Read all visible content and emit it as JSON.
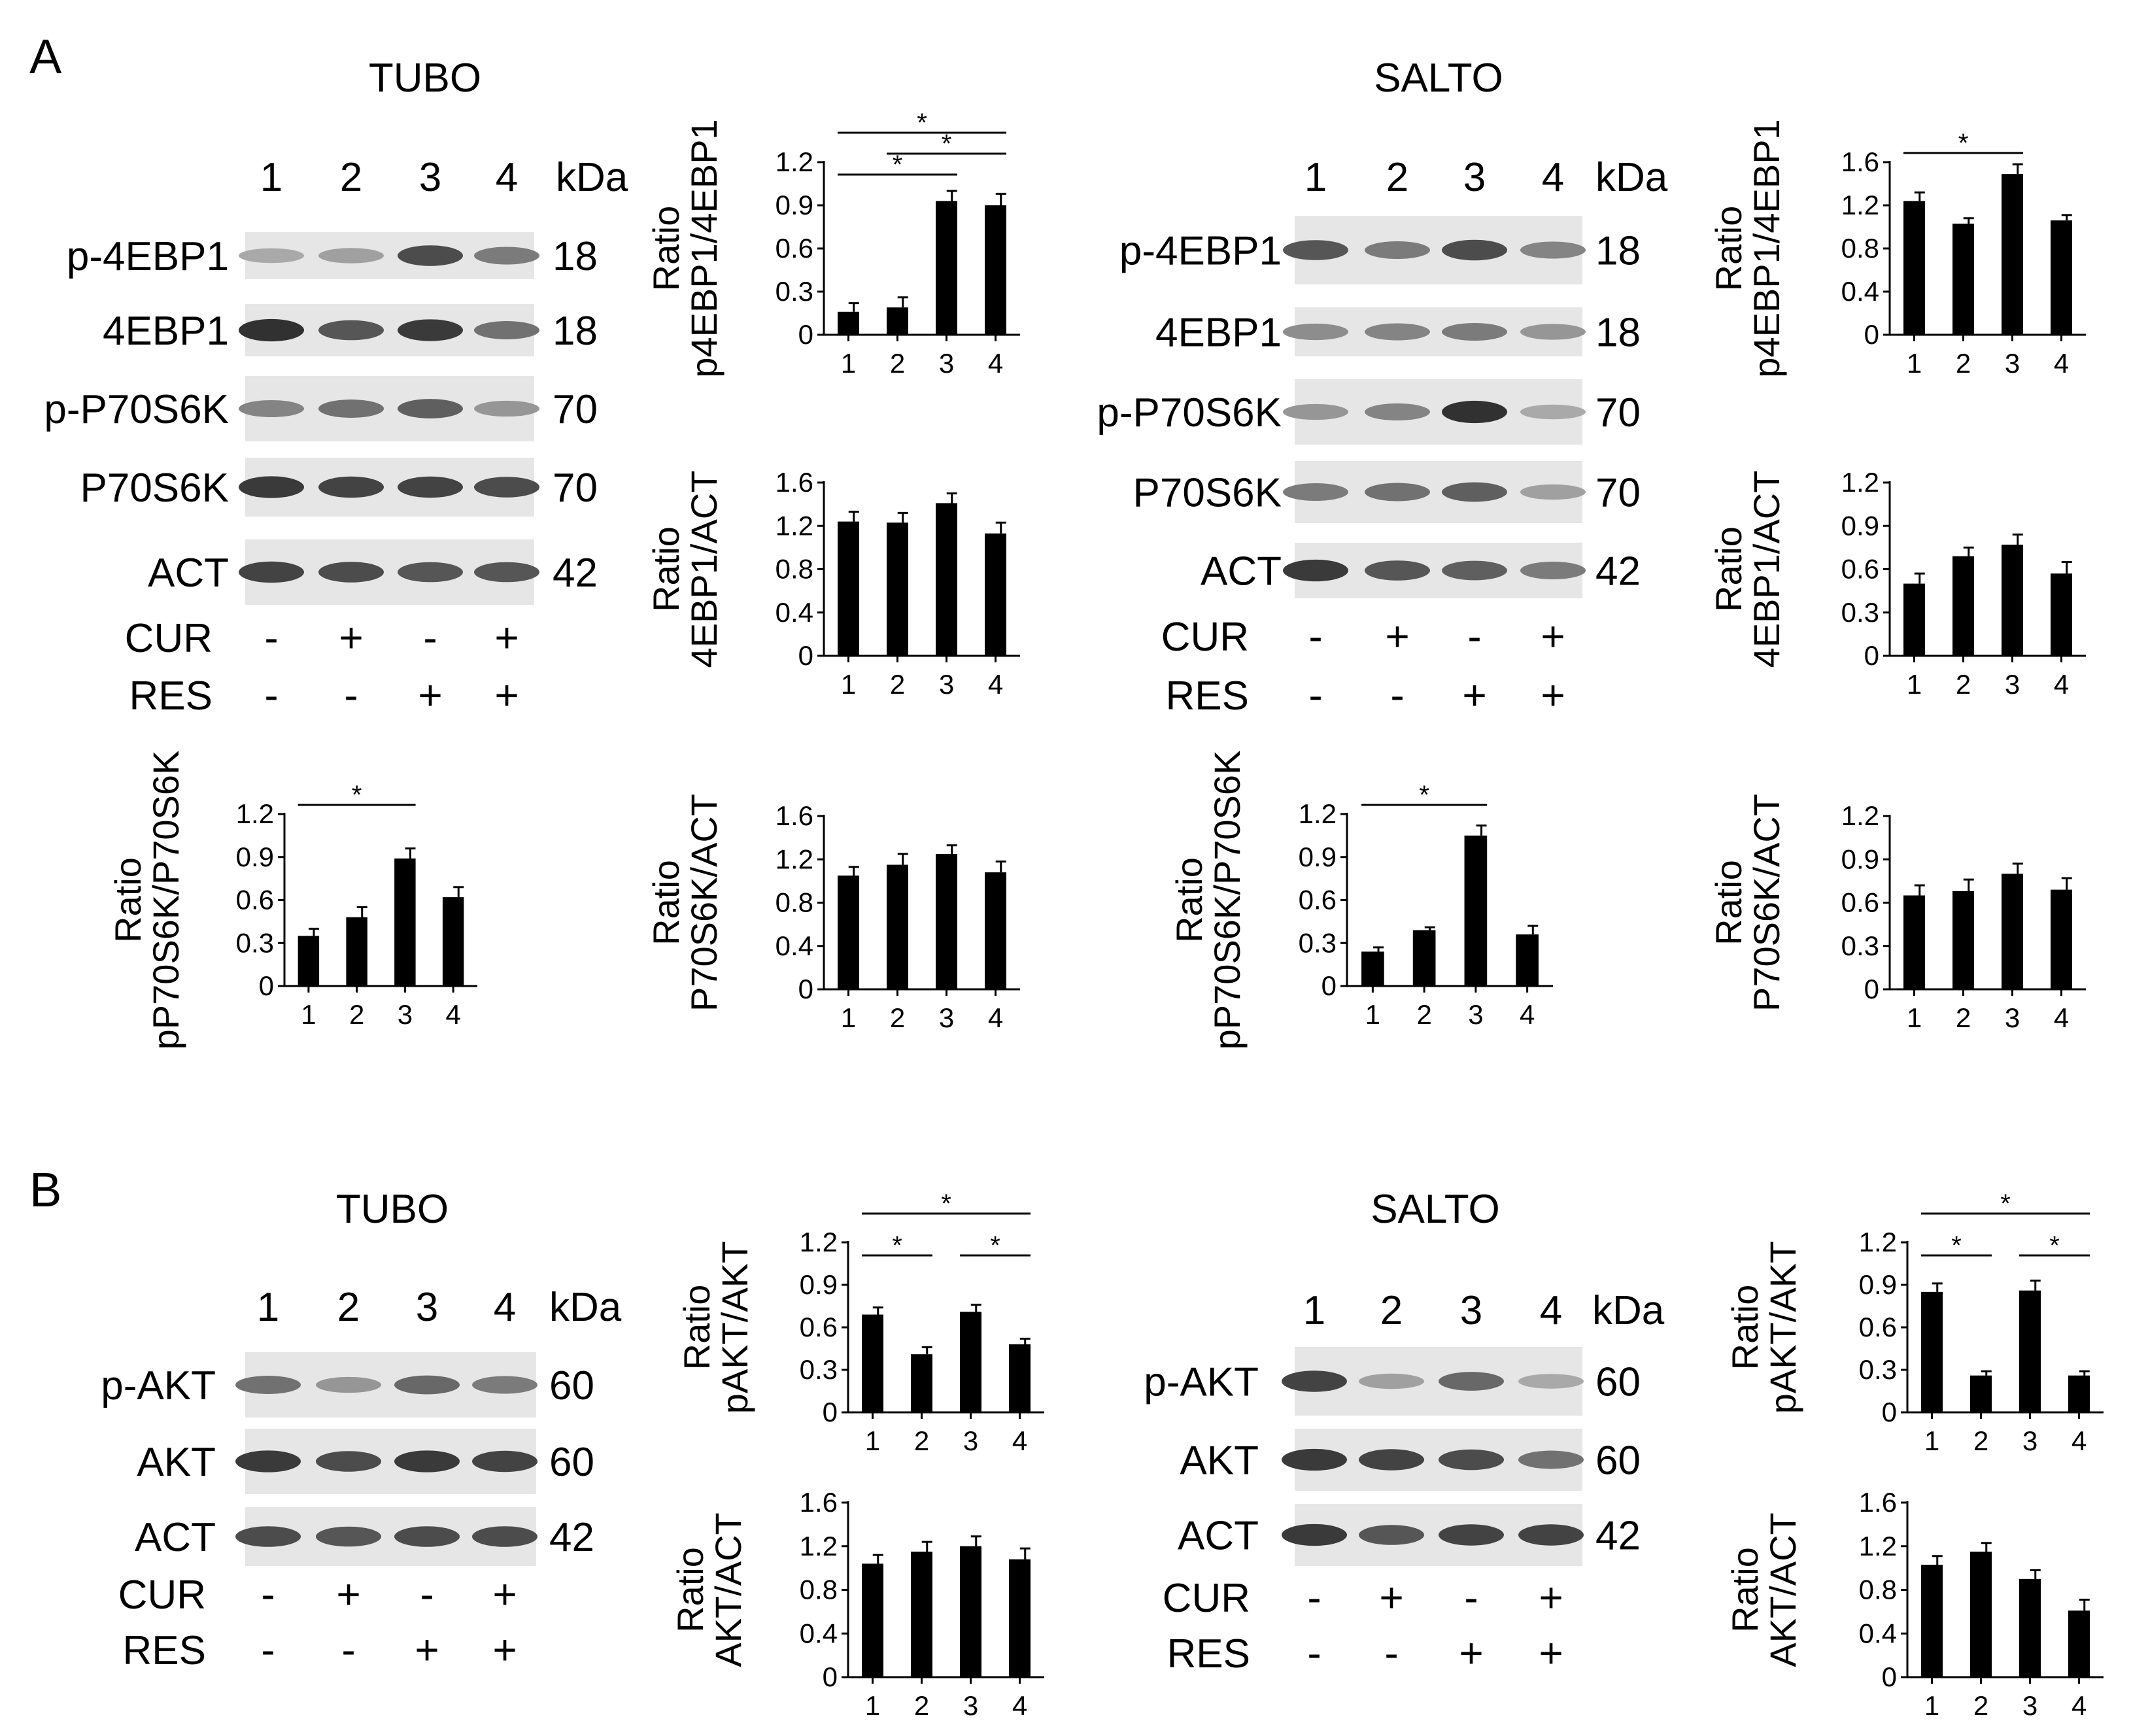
{
  "panels": [
    {
      "letter": "A",
      "cell_lines": [
        "TUBO",
        "SALTO"
      ]
    },
    {
      "letter": "B",
      "cell_lines": [
        "TUBO",
        "SALTO"
      ]
    }
  ],
  "blots": [
    {
      "id": "A-TUBO",
      "title": "TUBO",
      "kda_label": "kDa",
      "lanes": [
        "1",
        "2",
        "3",
        "4"
      ],
      "bands": [
        {
          "label": "p-4EBP1",
          "kda": "18",
          "intensity": [
            0.25,
            0.3,
            0.75,
            0.5
          ]
        },
        {
          "label": "4EBP1",
          "kda": "18",
          "intensity": [
            0.9,
            0.7,
            0.85,
            0.55
          ]
        },
        {
          "label": "p-P70S6K",
          "kda": "70",
          "intensity": [
            0.45,
            0.55,
            0.65,
            0.35
          ]
        },
        {
          "label": "P70S6K",
          "kda": "70",
          "intensity": [
            0.85,
            0.8,
            0.8,
            0.75
          ]
        },
        {
          "label": "ACT",
          "kda": "42",
          "intensity": [
            0.8,
            0.75,
            0.7,
            0.7
          ]
        }
      ],
      "treatments": [
        {
          "label": "CUR",
          "signs": [
            "-",
            "+",
            "-",
            "+"
          ]
        },
        {
          "label": "RES",
          "signs": [
            "-",
            "-",
            "+",
            "+"
          ]
        }
      ]
    },
    {
      "id": "A-SALTO",
      "title": "SALTO",
      "kda_label": "kDa",
      "lanes": [
        "1",
        "2",
        "3",
        "4"
      ],
      "bands": [
        {
          "label": "p-4EBP1",
          "kda": "18",
          "intensity": [
            0.7,
            0.5,
            0.75,
            0.45
          ]
        },
        {
          "label": "4EBP1",
          "kda": "18",
          "intensity": [
            0.4,
            0.45,
            0.5,
            0.35
          ]
        },
        {
          "label": "p-P70S6K",
          "kda": "70",
          "intensity": [
            0.35,
            0.45,
            0.9,
            0.25
          ]
        },
        {
          "label": "P70S6K",
          "kda": "70",
          "intensity": [
            0.5,
            0.55,
            0.65,
            0.3
          ]
        },
        {
          "label": "ACT",
          "kda": "42",
          "intensity": [
            0.85,
            0.7,
            0.65,
            0.5
          ]
        }
      ],
      "treatments": [
        {
          "label": "CUR",
          "signs": [
            "-",
            "+",
            "-",
            "+"
          ]
        },
        {
          "label": "RES",
          "signs": [
            "-",
            "-",
            "+",
            "+"
          ]
        }
      ]
    },
    {
      "id": "B-TUBO",
      "title": "TUBO",
      "kda_label": "kDa",
      "lanes": [
        "1",
        "2",
        "3",
        "4"
      ],
      "bands": [
        {
          "label": "p-AKT",
          "kda": "60",
          "intensity": [
            0.55,
            0.35,
            0.6,
            0.5
          ]
        },
        {
          "label": "AKT",
          "kda": "60",
          "intensity": [
            0.85,
            0.75,
            0.85,
            0.8
          ]
        },
        {
          "label": "ACT",
          "kda": "42",
          "intensity": [
            0.75,
            0.7,
            0.75,
            0.75
          ]
        }
      ],
      "treatments": [
        {
          "label": "CUR",
          "signs": [
            "-",
            "+",
            "-",
            "+"
          ]
        },
        {
          "label": "RES",
          "signs": [
            "-",
            "-",
            "+",
            "+"
          ]
        }
      ]
    },
    {
      "id": "B-SALTO",
      "title": "SALTO",
      "kda_label": "kDa",
      "lanes": [
        "1",
        "2",
        "3",
        "4"
      ],
      "bands": [
        {
          "label": "p-AKT",
          "kda": "60",
          "intensity": [
            0.8,
            0.3,
            0.6,
            0.25
          ]
        },
        {
          "label": "AKT",
          "kda": "60",
          "intensity": [
            0.85,
            0.8,
            0.75,
            0.55
          ]
        },
        {
          "label": "ACT",
          "kda": "42",
          "intensity": [
            0.85,
            0.7,
            0.8,
            0.8
          ]
        }
      ],
      "treatments": [
        {
          "label": "CUR",
          "signs": [
            "-",
            "+",
            "-",
            "+"
          ]
        },
        {
          "label": "RES",
          "signs": [
            "-",
            "-",
            "+",
            "+"
          ]
        }
      ]
    }
  ],
  "chart_data": [
    {
      "id": "A-TUBO-p4EBP1",
      "type": "bar",
      "categories": [
        "1",
        "2",
        "3",
        "4"
      ],
      "values": [
        0.16,
        0.19,
        0.93,
        0.9
      ],
      "errors": [
        0.06,
        0.07,
        0.07,
        0.08
      ],
      "ylabel": [
        "Ratio",
        "p4EBP1/4EBP1"
      ],
      "ylim": [
        0,
        1.2
      ],
      "yticks": [
        "0",
        "0.3",
        "0.6",
        "0.9",
        "1.2"
      ],
      "significance": [
        {
          "from": 1,
          "to": 3,
          "label": "*"
        },
        {
          "from": 2,
          "to": 4,
          "label": "*"
        },
        {
          "from": 1,
          "to": 4,
          "label": "*"
        }
      ]
    },
    {
      "id": "A-TUBO-4EBP1",
      "type": "bar",
      "categories": [
        "1",
        "2",
        "3",
        "4"
      ],
      "values": [
        1.24,
        1.23,
        1.41,
        1.13
      ],
      "errors": [
        0.09,
        0.09,
        0.09,
        0.1
      ],
      "ylabel": [
        "Ratio",
        "4EBP1/ACT"
      ],
      "ylim": [
        0,
        1.6
      ],
      "yticks": [
        "0",
        "0.4",
        "0.8",
        "1.2",
        "1.6"
      ],
      "significance": []
    },
    {
      "id": "A-TUBO-pP70S6K",
      "type": "bar",
      "categories": [
        "1",
        "2",
        "3",
        "4"
      ],
      "values": [
        0.35,
        0.48,
        0.89,
        0.62
      ],
      "errors": [
        0.05,
        0.07,
        0.07,
        0.07
      ],
      "ylabel": [
        "Ratio",
        "pP70S6K/P70S6K"
      ],
      "ylim": [
        0,
        1.2
      ],
      "yticks": [
        "0",
        "0.3",
        "0.6",
        "0.9",
        "1.2"
      ],
      "significance": [
        {
          "from": 1,
          "to": 3,
          "label": "*"
        }
      ]
    },
    {
      "id": "A-TUBO-P70S6K",
      "type": "bar",
      "categories": [
        "1",
        "2",
        "3",
        "4"
      ],
      "values": [
        1.05,
        1.15,
        1.25,
        1.08
      ],
      "errors": [
        0.08,
        0.1,
        0.08,
        0.1
      ],
      "ylabel": [
        "Ratio",
        "P70S6K/ACT"
      ],
      "ylim": [
        0,
        1.6
      ],
      "yticks": [
        "0",
        "0.4",
        "0.8",
        "1.2",
        "1.6"
      ],
      "significance": []
    },
    {
      "id": "A-SALTO-p4EBP1",
      "type": "bar",
      "categories": [
        "1",
        "2",
        "3",
        "4"
      ],
      "values": [
        1.24,
        1.03,
        1.49,
        1.06
      ],
      "errors": [
        0.08,
        0.05,
        0.09,
        0.05
      ],
      "ylabel": [
        "Ratio",
        "p4EBP1/4EBP1"
      ],
      "ylim": [
        0,
        1.6
      ],
      "yticks": [
        "0",
        "0.4",
        "0.8",
        "1.2",
        "1.6"
      ],
      "significance": [
        {
          "from": 1,
          "to": 3,
          "label": "*"
        }
      ]
    },
    {
      "id": "A-SALTO-4EBP1",
      "type": "bar",
      "categories": [
        "1",
        "2",
        "3",
        "4"
      ],
      "values": [
        0.5,
        0.69,
        0.77,
        0.57
      ],
      "errors": [
        0.07,
        0.06,
        0.07,
        0.08
      ],
      "ylabel": [
        "Ratio",
        "4EBP1/ACT"
      ],
      "ylim": [
        0,
        1.2
      ],
      "yticks": [
        "0",
        "0.3",
        "0.6",
        "0.9",
        "1.2"
      ],
      "significance": []
    },
    {
      "id": "A-SALTO-pP70S6K",
      "type": "bar",
      "categories": [
        "1",
        "2",
        "3",
        "4"
      ],
      "values": [
        0.24,
        0.39,
        1.05,
        0.36
      ],
      "errors": [
        0.03,
        0.02,
        0.07,
        0.06
      ],
      "ylabel": [
        "Ratio",
        "pP70S6K/P70S6K"
      ],
      "ylim": [
        0,
        1.2
      ],
      "yticks": [
        "0",
        "0.3",
        "0.6",
        "0.9",
        "1.2"
      ],
      "significance": [
        {
          "from": 1,
          "to": 3,
          "label": "*"
        }
      ]
    },
    {
      "id": "A-SALTO-P70S6K",
      "type": "bar",
      "categories": [
        "1",
        "2",
        "3",
        "4"
      ],
      "values": [
        0.65,
        0.68,
        0.8,
        0.69
      ],
      "errors": [
        0.07,
        0.08,
        0.07,
        0.08
      ],
      "ylabel": [
        "Ratio",
        "P70S6K/ACT"
      ],
      "ylim": [
        0,
        1.2
      ],
      "yticks": [
        "0",
        "0.3",
        "0.6",
        "0.9",
        "1.2"
      ],
      "significance": []
    },
    {
      "id": "B-TUBO-pAKT",
      "type": "bar",
      "categories": [
        "1",
        "2",
        "3",
        "4"
      ],
      "values": [
        0.69,
        0.41,
        0.71,
        0.48
      ],
      "errors": [
        0.05,
        0.05,
        0.05,
        0.04
      ],
      "ylabel": [
        "Ratio",
        "pAKT/AKT"
      ],
      "ylim": [
        0,
        1.2
      ],
      "yticks": [
        "0",
        "0.3",
        "0.6",
        "0.9",
        "1.2"
      ],
      "significance": [
        {
          "from": 1,
          "to": 2,
          "label": "*"
        },
        {
          "from": 3,
          "to": 4,
          "label": "*"
        },
        {
          "from": 1,
          "to": 4,
          "label": "*"
        }
      ]
    },
    {
      "id": "B-TUBO-AKT",
      "type": "bar",
      "categories": [
        "1",
        "2",
        "3",
        "4"
      ],
      "values": [
        1.04,
        1.15,
        1.2,
        1.08
      ],
      "errors": [
        0.08,
        0.09,
        0.09,
        0.1
      ],
      "ylabel": [
        "Ratio",
        "AKT/ACT"
      ],
      "ylim": [
        0,
        1.6
      ],
      "yticks": [
        "0",
        "0.4",
        "0.8",
        "1.2",
        "1.6"
      ],
      "significance": []
    },
    {
      "id": "B-SALTO-pAKT",
      "type": "bar",
      "categories": [
        "1",
        "2",
        "3",
        "4"
      ],
      "values": [
        0.85,
        0.26,
        0.86,
        0.26
      ],
      "errors": [
        0.06,
        0.03,
        0.07,
        0.03
      ],
      "ylabel": [
        "Ratio",
        "pAKT/AKT"
      ],
      "ylim": [
        0,
        1.2
      ],
      "yticks": [
        "0",
        "0.3",
        "0.6",
        "0.9",
        "1.2"
      ],
      "significance": [
        {
          "from": 1,
          "to": 2,
          "label": "*"
        },
        {
          "from": 3,
          "to": 4,
          "label": "*"
        },
        {
          "from": 1,
          "to": 4,
          "label": "*"
        }
      ]
    },
    {
      "id": "B-SALTO-AKT",
      "type": "bar",
      "categories": [
        "1",
        "2",
        "3",
        "4"
      ],
      "values": [
        1.03,
        1.15,
        0.9,
        0.61
      ],
      "errors": [
        0.08,
        0.08,
        0.08,
        0.1
      ],
      "ylabel": [
        "Ratio",
        "AKT/ACT"
      ],
      "ylim": [
        0,
        1.6
      ],
      "yticks": [
        "0",
        "0.4",
        "0.8",
        "1.2",
        "1.6"
      ],
      "significance": []
    }
  ]
}
